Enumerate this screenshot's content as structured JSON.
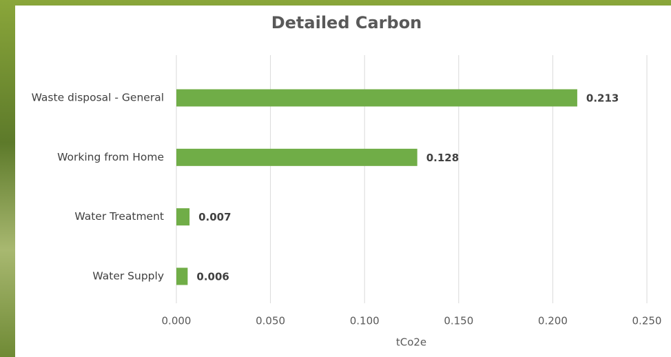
{
  "chart_data": {
    "type": "bar",
    "orientation": "horizontal",
    "title": "Detailed Carbon",
    "x_label": "tCo2e",
    "categories": [
      "Waste disposal - General",
      "Working from Home",
      "Water Treatment",
      "Water Supply"
    ],
    "values": [
      0.213,
      0.128,
      0.007,
      0.006
    ],
    "color": "#70ad47",
    "xlim": [
      0,
      0.25
    ],
    "xticks": [
      {
        "value": 0,
        "label": "0.000"
      },
      {
        "value": 0.05,
        "label": "0.050"
      },
      {
        "value": 0.1,
        "label": "0.100"
      },
      {
        "value": 0.15,
        "label": "0.150"
      },
      {
        "value": 0.2,
        "label": "0.200"
      },
      {
        "value": 0.25,
        "label": "0.250"
      }
    ],
    "grid": true
  }
}
